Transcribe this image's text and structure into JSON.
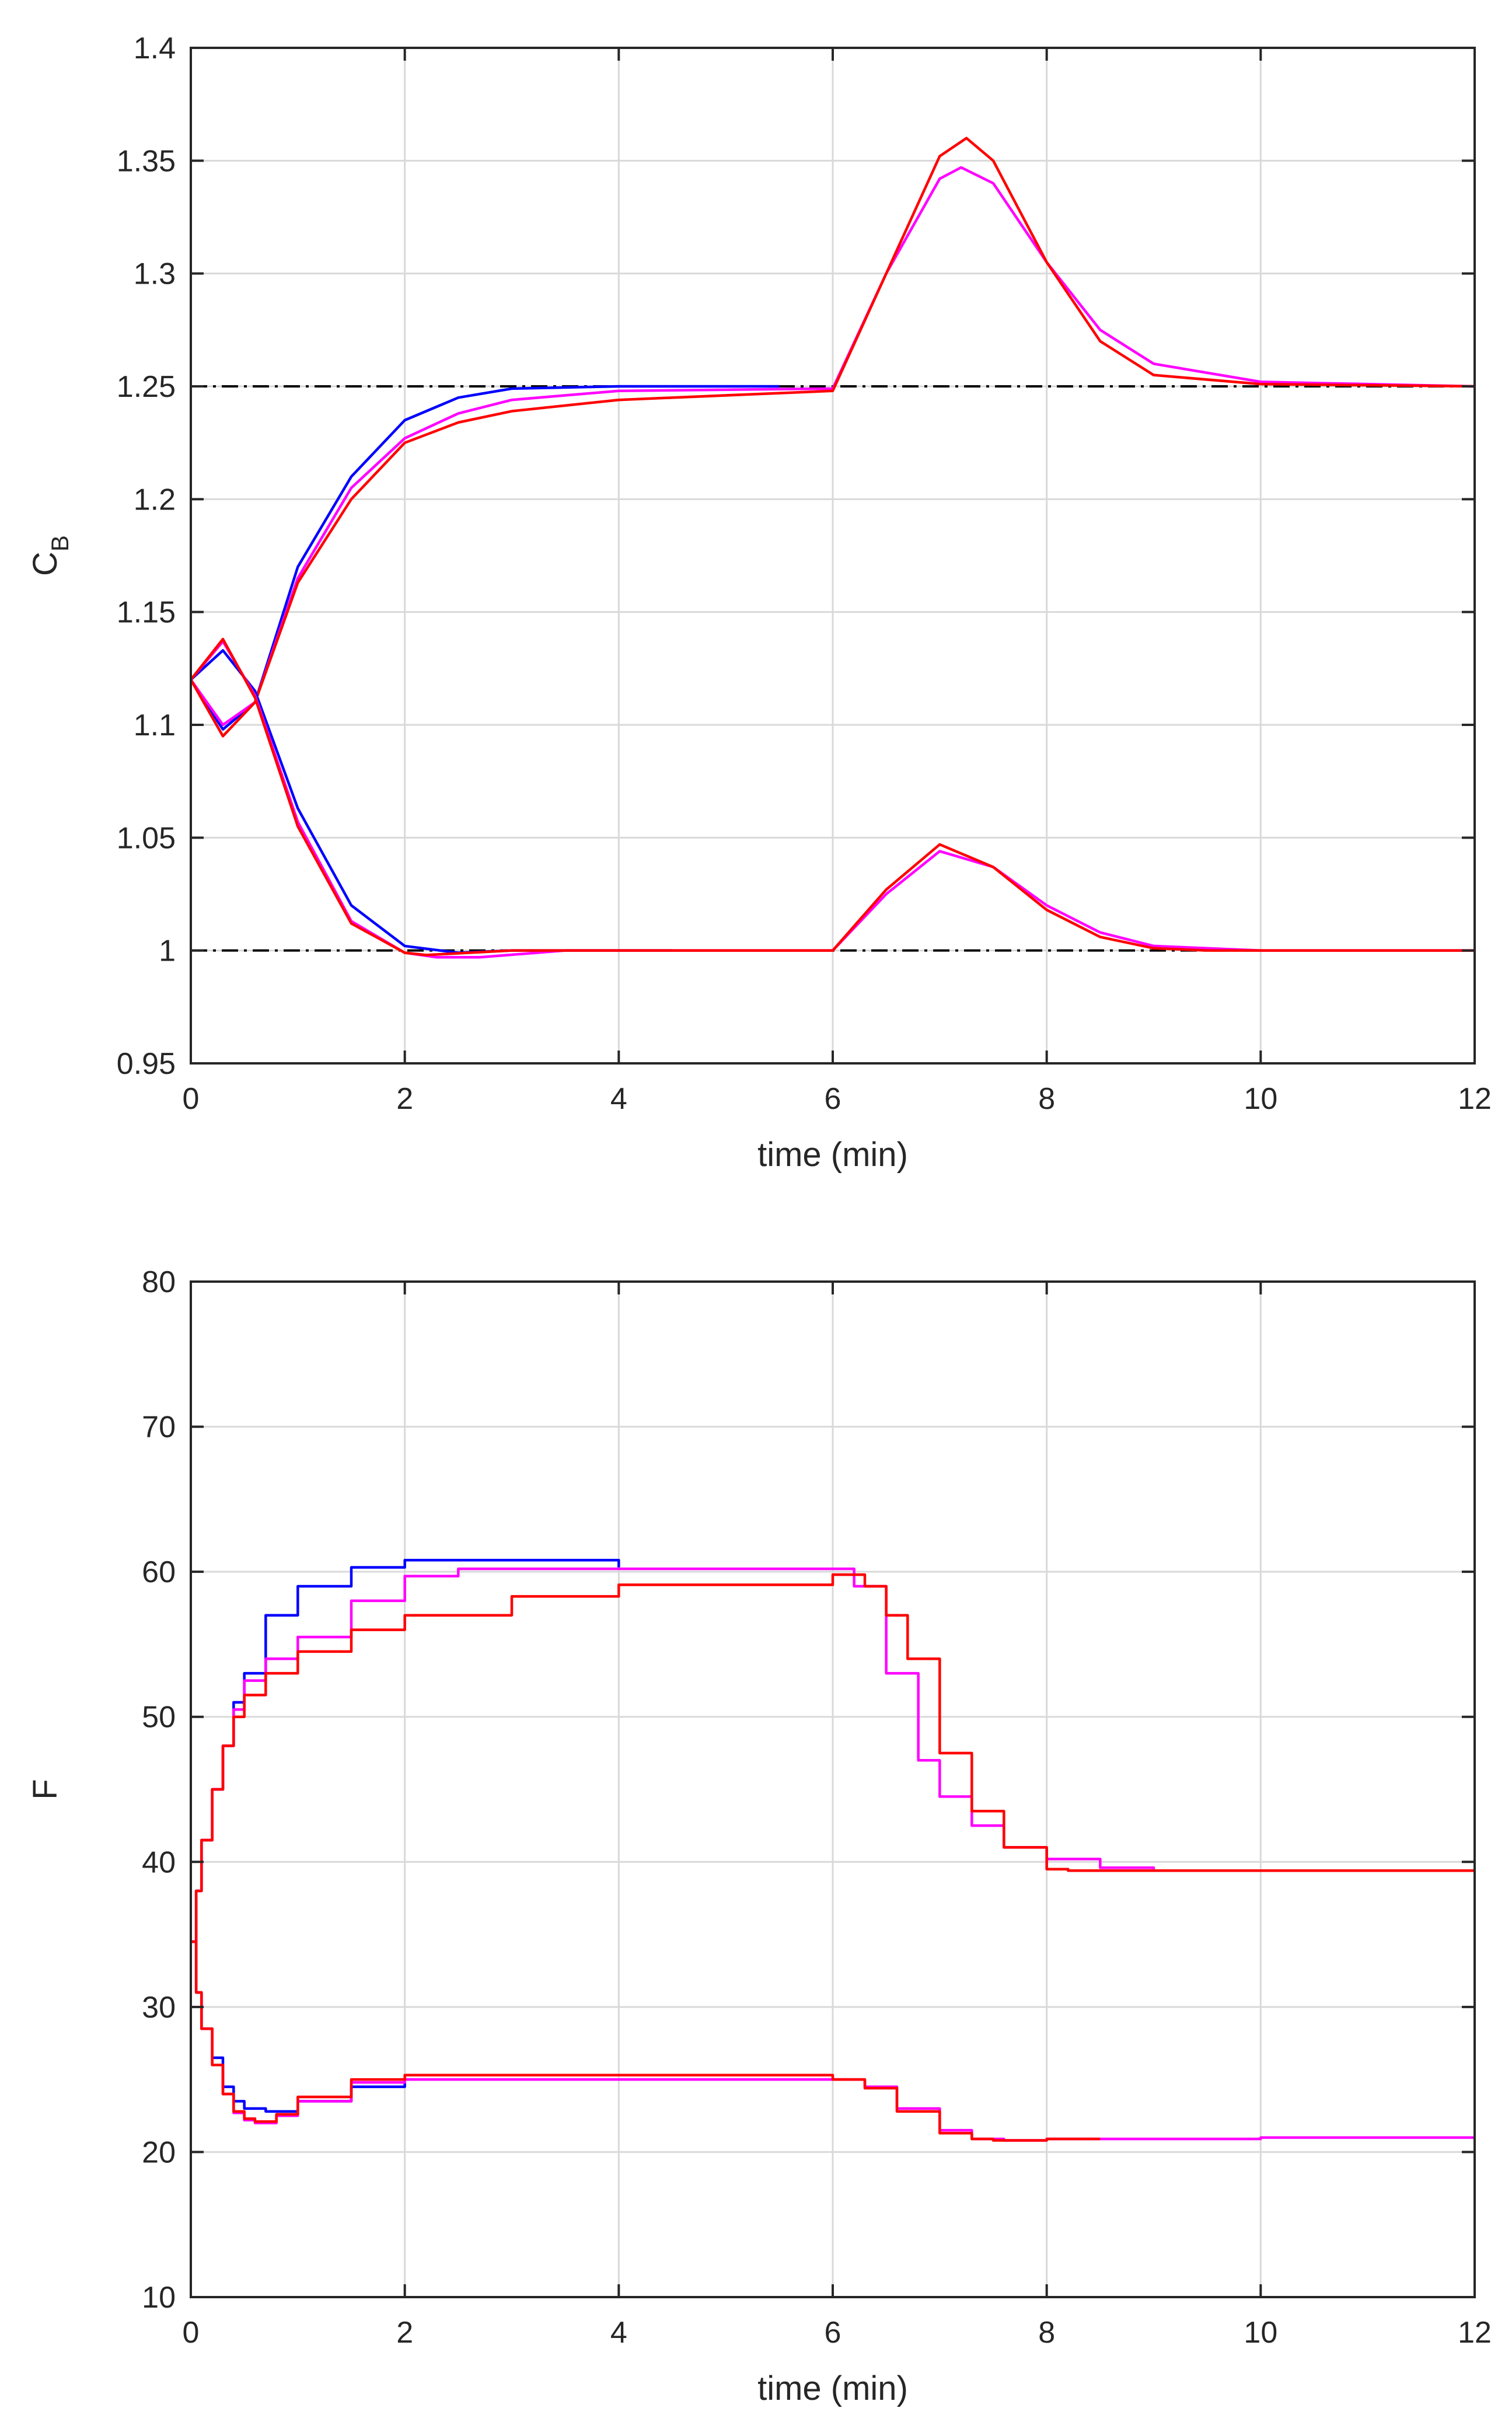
{
  "colors": {
    "blue": "#0000ff",
    "magenta": "#ff00ff",
    "red": "#ff0000",
    "reference": "#000000"
  },
  "chart_data": [
    {
      "type": "line",
      "ylabel": "C",
      "ylabel_subscript": "B",
      "xlabel": "time (min)",
      "xlim": [
        0,
        12
      ],
      "ylim": [
        0.95,
        1.4
      ],
      "xticks": [
        "0",
        "2",
        "4",
        "6",
        "8",
        "10",
        "12"
      ],
      "yticks": [
        "0.95",
        "1",
        "1.05",
        "1.1",
        "1.15",
        "1.2",
        "1.25",
        "1.3",
        "1.35",
        "1.4"
      ],
      "grid": true,
      "reference_lines": [
        1.25,
        1.0
      ],
      "series": [
        {
          "color": "#0000ff",
          "x": [
            0,
            0.3,
            0.6,
            1,
            1.5,
            2,
            2.5,
            3,
            4,
            5.5
          ],
          "y": [
            1.12,
            1.098,
            1.11,
            1.17,
            1.21,
            1.235,
            1.245,
            1.249,
            1.25,
            1.25
          ]
        },
        {
          "color": "#ff00ff",
          "x": [
            0,
            0.3,
            0.6,
            1,
            1.5,
            2,
            2.5,
            3,
            4,
            6,
            6.5,
            7,
            7.2,
            7.5,
            8,
            8.5,
            9,
            10,
            12
          ],
          "y": [
            1.12,
            1.1,
            1.11,
            1.165,
            1.205,
            1.227,
            1.238,
            1.244,
            1.248,
            1.249,
            1.3,
            1.342,
            1.347,
            1.34,
            1.305,
            1.275,
            1.26,
            1.252,
            1.25
          ]
        },
        {
          "color": "#ff0000",
          "x": [
            0,
            0.3,
            0.6,
            1,
            1.5,
            2,
            2.5,
            3,
            4,
            6,
            6.5,
            7,
            7.25,
            7.5,
            8,
            8.5,
            9,
            10,
            12
          ],
          "y": [
            1.12,
            1.095,
            1.11,
            1.163,
            1.2,
            1.225,
            1.234,
            1.239,
            1.244,
            1.248,
            1.3,
            1.352,
            1.36,
            1.35,
            1.305,
            1.27,
            1.255,
            1.251,
            1.25
          ]
        },
        {
          "color": "#0000ff",
          "x": [
            0,
            0.3,
            0.6,
            1,
            1.5,
            2,
            2.5,
            3,
            4.5
          ],
          "y": [
            1.12,
            1.133,
            1.115,
            1.063,
            1.02,
            1.002,
            0.999,
            1.0,
            1.0
          ]
        },
        {
          "color": "#ff00ff",
          "x": [
            0,
            0.3,
            0.6,
            1,
            1.5,
            2,
            2.3,
            2.7,
            3.5,
            6,
            6.5,
            7,
            7.5,
            8,
            8.5,
            9,
            10,
            12
          ],
          "y": [
            1.12,
            1.137,
            1.113,
            1.057,
            1.013,
            0.999,
            0.997,
            0.997,
            1.0,
            1.0,
            1.025,
            1.044,
            1.037,
            1.02,
            1.008,
            1.002,
            1.0,
            1.0
          ]
        },
        {
          "color": "#ff0000",
          "x": [
            0,
            0.3,
            0.6,
            1,
            1.5,
            2,
            2.2,
            3,
            6,
            6.5,
            7,
            7.5,
            8,
            8.5,
            9,
            9.5,
            12
          ],
          "y": [
            1.12,
            1.138,
            1.112,
            1.055,
            1.012,
            0.999,
            0.998,
            1.0,
            1.0,
            1.027,
            1.047,
            1.037,
            1.018,
            1.006,
            1.001,
            1.0,
            1.0
          ]
        }
      ]
    },
    {
      "type": "line",
      "ylabel": "F",
      "xlabel": "time (min)",
      "xlim": [
        0,
        12
      ],
      "ylim": [
        10,
        80
      ],
      "xticks": [
        "0",
        "2",
        "4",
        "6",
        "8",
        "10",
        "12"
      ],
      "yticks": [
        "10",
        "20",
        "30",
        "40",
        "50",
        "60",
        "70",
        "80"
      ],
      "grid": true,
      "stairs": true,
      "series": [
        {
          "color": "#0000ff",
          "x": [
            0,
            0.05,
            0.1,
            0.2,
            0.3,
            0.4,
            0.5,
            0.7,
            1,
            1.5,
            2,
            3,
            4
          ],
          "y": [
            34.5,
            38,
            41.5,
            45,
            48,
            51,
            53,
            57,
            59,
            60.3,
            60.8,
            60.8,
            60.3
          ]
        },
        {
          "color": "#ff00ff",
          "x": [
            0,
            0.05,
            0.1,
            0.2,
            0.3,
            0.4,
            0.5,
            0.7,
            1,
            1.5,
            2,
            2.5,
            3,
            4,
            6,
            6.2,
            6.5,
            6.8,
            7,
            7.3,
            7.6,
            8,
            8.5,
            9
          ],
          "y": [
            34.5,
            38,
            41.5,
            45,
            48,
            50.5,
            52.5,
            54,
            55.5,
            58,
            59.7,
            60.2,
            60.2,
            60.2,
            60.2,
            59,
            53,
            47,
            44.5,
            42.5,
            41,
            40.2,
            39.6,
            39.5
          ]
        },
        {
          "color": "#ff0000",
          "x": [
            0,
            0.05,
            0.1,
            0.2,
            0.3,
            0.4,
            0.5,
            0.7,
            1,
            1.5,
            2,
            3,
            4,
            6,
            6.3,
            6.5,
            6.7,
            7,
            7.3,
            7.6,
            8,
            8.2,
            12
          ],
          "y": [
            34.5,
            38,
            41.5,
            45,
            48,
            50,
            51.5,
            53,
            54.5,
            56,
            57,
            58.3,
            59.1,
            59.8,
            59,
            57,
            54,
            47.5,
            43.5,
            41,
            39.5,
            39.4,
            39.4
          ]
        },
        {
          "color": "#0000ff",
          "x": [
            0,
            0.05,
            0.1,
            0.2,
            0.3,
            0.4,
            0.5,
            0.7,
            1,
            1.5,
            2
          ],
          "y": [
            34.5,
            31,
            28.5,
            26.5,
            24.5,
            23.5,
            23,
            22.8,
            23.5,
            24.5,
            24.8
          ]
        },
        {
          "color": "#ff00ff",
          "x": [
            0,
            0.05,
            0.1,
            0.2,
            0.3,
            0.4,
            0.5,
            0.6,
            0.8,
            1,
            1.5,
            2,
            3,
            6,
            6.3,
            6.6,
            7,
            7.3,
            7.6,
            8,
            10,
            12
          ],
          "y": [
            34.5,
            31,
            28.5,
            26,
            24,
            22.7,
            22.2,
            22,
            22.5,
            23.5,
            24.8,
            25,
            25,
            25,
            24.5,
            23,
            21.5,
            20.9,
            20.8,
            20.9,
            21.0,
            21.0
          ]
        },
        {
          "color": "#ff0000",
          "x": [
            0,
            0.05,
            0.1,
            0.2,
            0.3,
            0.4,
            0.5,
            0.6,
            0.8,
            1,
            1.5,
            2,
            2.1,
            6,
            6.3,
            6.6,
            7,
            7.3,
            7.5,
            8,
            8.5
          ],
          "y": [
            34.5,
            31,
            28.5,
            26,
            24,
            22.8,
            22.3,
            22.1,
            22.6,
            23.8,
            25,
            25.3,
            25.3,
            25,
            24.4,
            22.8,
            21.3,
            20.9,
            20.8,
            20.9,
            20.9
          ]
        }
      ]
    }
  ]
}
